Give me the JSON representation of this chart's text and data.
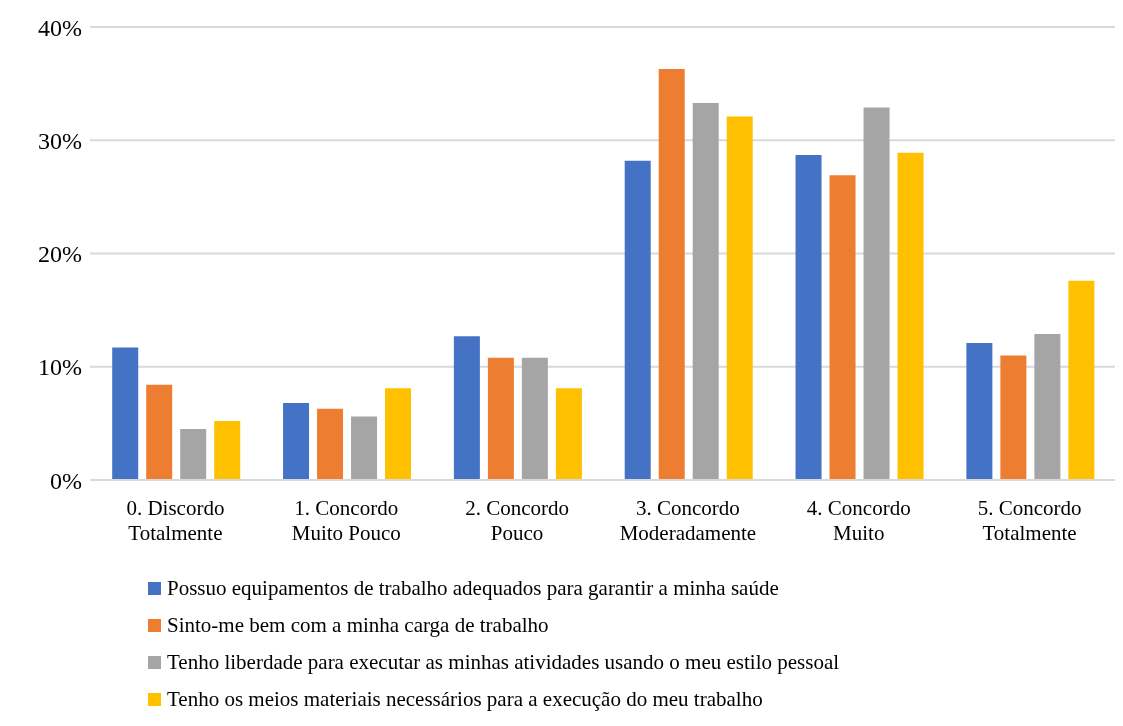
{
  "chart_data": {
    "type": "bar",
    "categories": [
      "0. Discordo Totalmente",
      "1. Concordo Muito Pouco",
      "2. Concordo Pouco",
      "3. Concordo Moderadamente",
      "4. Concordo Muito",
      "5. Concordo Totalmente"
    ],
    "series": [
      {
        "name": "Possuo equipamentos de trabalho adequados para garantir a minha saúde",
        "color": "#4472c4",
        "values": [
          11.7,
          6.8,
          12.7,
          28.2,
          28.7,
          12.1
        ]
      },
      {
        "name": "Sinto-me bem com a minha carga de trabalho",
        "color": "#ed7d31",
        "values": [
          8.4,
          6.3,
          10.8,
          36.3,
          26.9,
          11.0
        ]
      },
      {
        "name": "Tenho liberdade para executar as minhas atividades usando o meu estilo pessoal",
        "color": "#a5a5a5",
        "values": [
          4.5,
          5.6,
          10.8,
          33.3,
          32.9,
          12.9
        ]
      },
      {
        "name": "Tenho os meios materiais necessários para a execução do meu trabalho",
        "color": "#ffc000",
        "values": [
          5.2,
          8.1,
          8.1,
          32.1,
          28.9,
          17.6
        ]
      }
    ],
    "ylim": [
      0,
      40
    ],
    "yticks": [
      {
        "value": 0,
        "label": "0%"
      },
      {
        "value": 10,
        "label": "10%"
      },
      {
        "value": 20,
        "label": "20%"
      },
      {
        "value": 30,
        "label": "30%"
      },
      {
        "value": 40,
        "label": "40%"
      }
    ],
    "grid": "y",
    "legend": "bottom"
  }
}
